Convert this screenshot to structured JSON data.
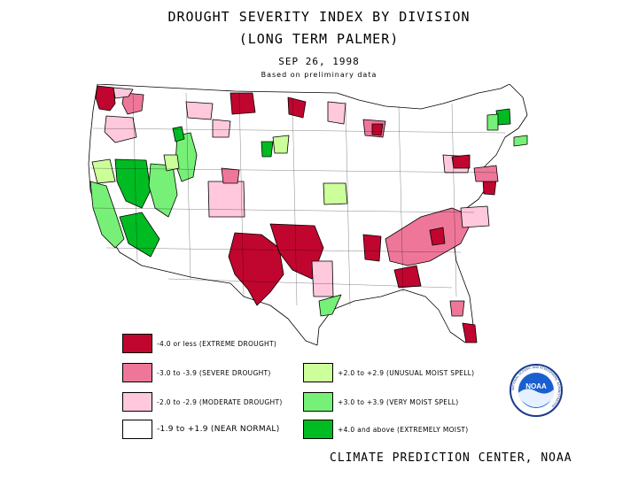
{
  "header": {
    "title": "DROUGHT SEVERITY INDEX BY DIVISION",
    "subtitle": "(LONG TERM PALMER)",
    "date": "SEP 26, 1998",
    "note": "Based on preliminary data"
  },
  "map_colors": {
    "outline": "#000000",
    "near_normal": "#ffffff",
    "moderate_drought": "#ffc8dc",
    "severe_drought": "#ee7799",
    "extreme_drought": "#c0062e",
    "unusual_moist": "#ccff99",
    "very_moist": "#77f077",
    "extremely_moist": "#00bb22"
  },
  "legend": {
    "left": [
      {
        "label": "-4.0 or less (EXTREME DROUGHT)",
        "color": "#c0062e"
      },
      {
        "label": "-3.0 to -3.9 (SEVERE DROUGHT)",
        "color": "#ee7799"
      },
      {
        "label": "-2.0 to -2.9 (MODERATE DROUGHT)",
        "color": "#ffc8dc"
      },
      {
        "label": "-1.9 to +1.9 (NEAR NORMAL)",
        "color": "#ffffff"
      }
    ],
    "right": [
      {
        "label": "+2.0 to +2.9 (UNUSUAL MOIST SPELL)",
        "color": "#ccff99"
      },
      {
        "label": "+3.0 to +3.9 (VERY MOIST SPELL)",
        "color": "#77f077"
      },
      {
        "label": "+4.0 and above (EXTREMELY MOIST)",
        "color": "#00bb22"
      }
    ]
  },
  "logo": {
    "text": "NOAA",
    "ring_text": "NATIONAL OCEANIC AND ATMOSPHERIC ADMINISTRATION"
  },
  "footer": {
    "credit": "CLIMATE PREDICTION CENTER, NOAA"
  }
}
